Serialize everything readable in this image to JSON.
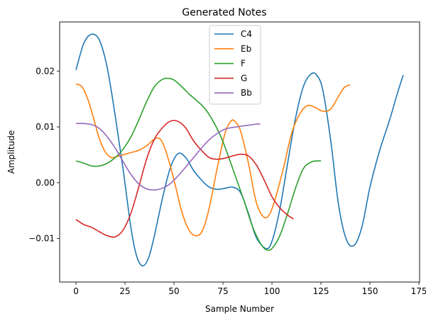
{
  "chart_data": {
    "type": "line",
    "title": "Generated Notes",
    "xlabel": "Sample Number",
    "ylabel": "Amplitude",
    "xlim": [
      -8.35,
      175.35
    ],
    "ylim": [
      -0.0178,
      0.0288
    ],
    "xticks": [
      0,
      25,
      50,
      75,
      100,
      125,
      150,
      175
    ],
    "yticks": [
      -0.01,
      0.0,
      0.01,
      0.02
    ],
    "ytick_labels": [
      "−0.01",
      "0.00",
      "0.01",
      "0.02"
    ],
    "grid": false,
    "legend_position": "top-center",
    "series": [
      {
        "name": "C4",
        "color": "#1f77b4",
        "x": [
          0,
          4,
          8,
          12,
          16,
          20,
          24,
          28,
          31,
          34,
          37,
          40,
          44,
          48,
          52,
          56,
          60,
          64,
          68,
          72,
          76,
          80,
          84,
          88,
          92,
          97,
          100,
          104,
          108,
          112,
          116,
          120,
          123,
          126,
          130,
          134,
          138,
          142,
          146,
          150,
          155,
          160,
          164,
          167
        ],
        "y": [
          0.0202,
          0.025,
          0.0266,
          0.0255,
          0.0205,
          0.012,
          0.0025,
          -0.008,
          -0.0132,
          -0.0149,
          -0.0135,
          -0.0095,
          -0.003,
          0.0025,
          0.0052,
          0.0045,
          0.0022,
          0.0005,
          -0.0008,
          -0.0012,
          -0.001,
          -0.0008,
          -0.0018,
          -0.0055,
          -0.0098,
          -0.0118,
          -0.0105,
          -0.0048,
          0.0035,
          0.0115,
          0.0172,
          0.0195,
          0.0192,
          0.0165,
          0.0075,
          -0.004,
          -0.0102,
          -0.0112,
          -0.0078,
          -0.0008,
          0.0058,
          0.0112,
          0.016,
          0.0193
        ]
      },
      {
        "name": "Eb",
        "color": "#ff7f0e",
        "x": [
          0,
          3,
          6,
          9,
          12,
          15,
          18,
          21,
          24,
          28,
          32,
          36,
          40,
          43,
          46,
          50,
          54,
          58,
          62,
          65,
          68,
          72,
          76,
          79,
          81,
          84,
          88,
          92,
          96,
          99,
          102,
          106,
          110,
          114,
          118,
          122,
          126,
          130,
          134,
          137,
          140
        ],
        "y": [
          0.0177,
          0.0172,
          0.015,
          0.0115,
          0.0078,
          0.0055,
          0.0045,
          0.0047,
          0.005,
          0.0054,
          0.0058,
          0.0066,
          0.0078,
          0.0078,
          0.0055,
          0.0005,
          -0.0052,
          -0.0087,
          -0.0095,
          -0.0082,
          -0.0045,
          0.0025,
          0.0088,
          0.011,
          0.011,
          0.0092,
          0.0035,
          -0.0035,
          -0.0062,
          -0.0055,
          -0.0025,
          0.0028,
          0.0088,
          0.0122,
          0.0138,
          0.0135,
          0.0128,
          0.0132,
          0.0155,
          0.0171,
          0.0175
        ]
      },
      {
        "name": "F",
        "color": "#2ca02c",
        "x": [
          0,
          4,
          8,
          12,
          16,
          20,
          24,
          28,
          32,
          36,
          40,
          44,
          47,
          50,
          54,
          58,
          62,
          66,
          70,
          74,
          78,
          82,
          86,
          90,
          94,
          97,
          100,
          104,
          108,
          112,
          116,
          120,
          123,
          125
        ],
        "y": [
          0.0039,
          0.0035,
          0.003,
          0.003,
          0.0035,
          0.0045,
          0.006,
          0.0082,
          0.0112,
          0.0145,
          0.0172,
          0.0185,
          0.0187,
          0.0184,
          0.0172,
          0.0158,
          0.0146,
          0.0132,
          0.011,
          0.0082,
          0.0045,
          0.0005,
          -0.0035,
          -0.0078,
          -0.0108,
          -0.012,
          -0.0118,
          -0.0095,
          -0.0055,
          -0.001,
          0.0025,
          0.0037,
          0.0039,
          0.0039
        ]
      },
      {
        "name": "G",
        "color": "#d62728",
        "x": [
          0,
          4,
          8,
          12,
          16,
          20,
          24,
          28,
          32,
          36,
          40,
          44,
          48,
          52,
          56,
          60,
          64,
          68,
          72,
          76,
          80,
          84,
          88,
          92,
          96,
          100,
          104,
          108,
          111
        ],
        "y": [
          -0.0066,
          -0.0075,
          -0.008,
          -0.0088,
          -0.0095,
          -0.0097,
          -0.0085,
          -0.0055,
          -0.0008,
          0.0042,
          0.0078,
          0.0098,
          0.011,
          0.011,
          0.0098,
          0.0075,
          0.0058,
          0.0045,
          0.0042,
          0.0044,
          0.0048,
          0.0051,
          0.0048,
          0.0032,
          0.0005,
          -0.0025,
          -0.0045,
          -0.0058,
          -0.0065
        ]
      },
      {
        "name": "Bb",
        "color": "#9467bd",
        "x": [
          0,
          4,
          8,
          12,
          16,
          20,
          24,
          28,
          32,
          36,
          40,
          44,
          48,
          52,
          56,
          60,
          64,
          68,
          72,
          76,
          80,
          84,
          88,
          92,
          94
        ],
        "y": [
          0.0106,
          0.0106,
          0.0104,
          0.0097,
          0.0082,
          0.0062,
          0.0038,
          0.0015,
          -0.0002,
          -0.0011,
          -0.0013,
          -0.001,
          -0.0002,
          0.0012,
          0.0028,
          0.0045,
          0.0062,
          0.0077,
          0.0088,
          0.0096,
          0.0099,
          0.0101,
          0.0103,
          0.0105,
          0.0105
        ]
      }
    ]
  }
}
